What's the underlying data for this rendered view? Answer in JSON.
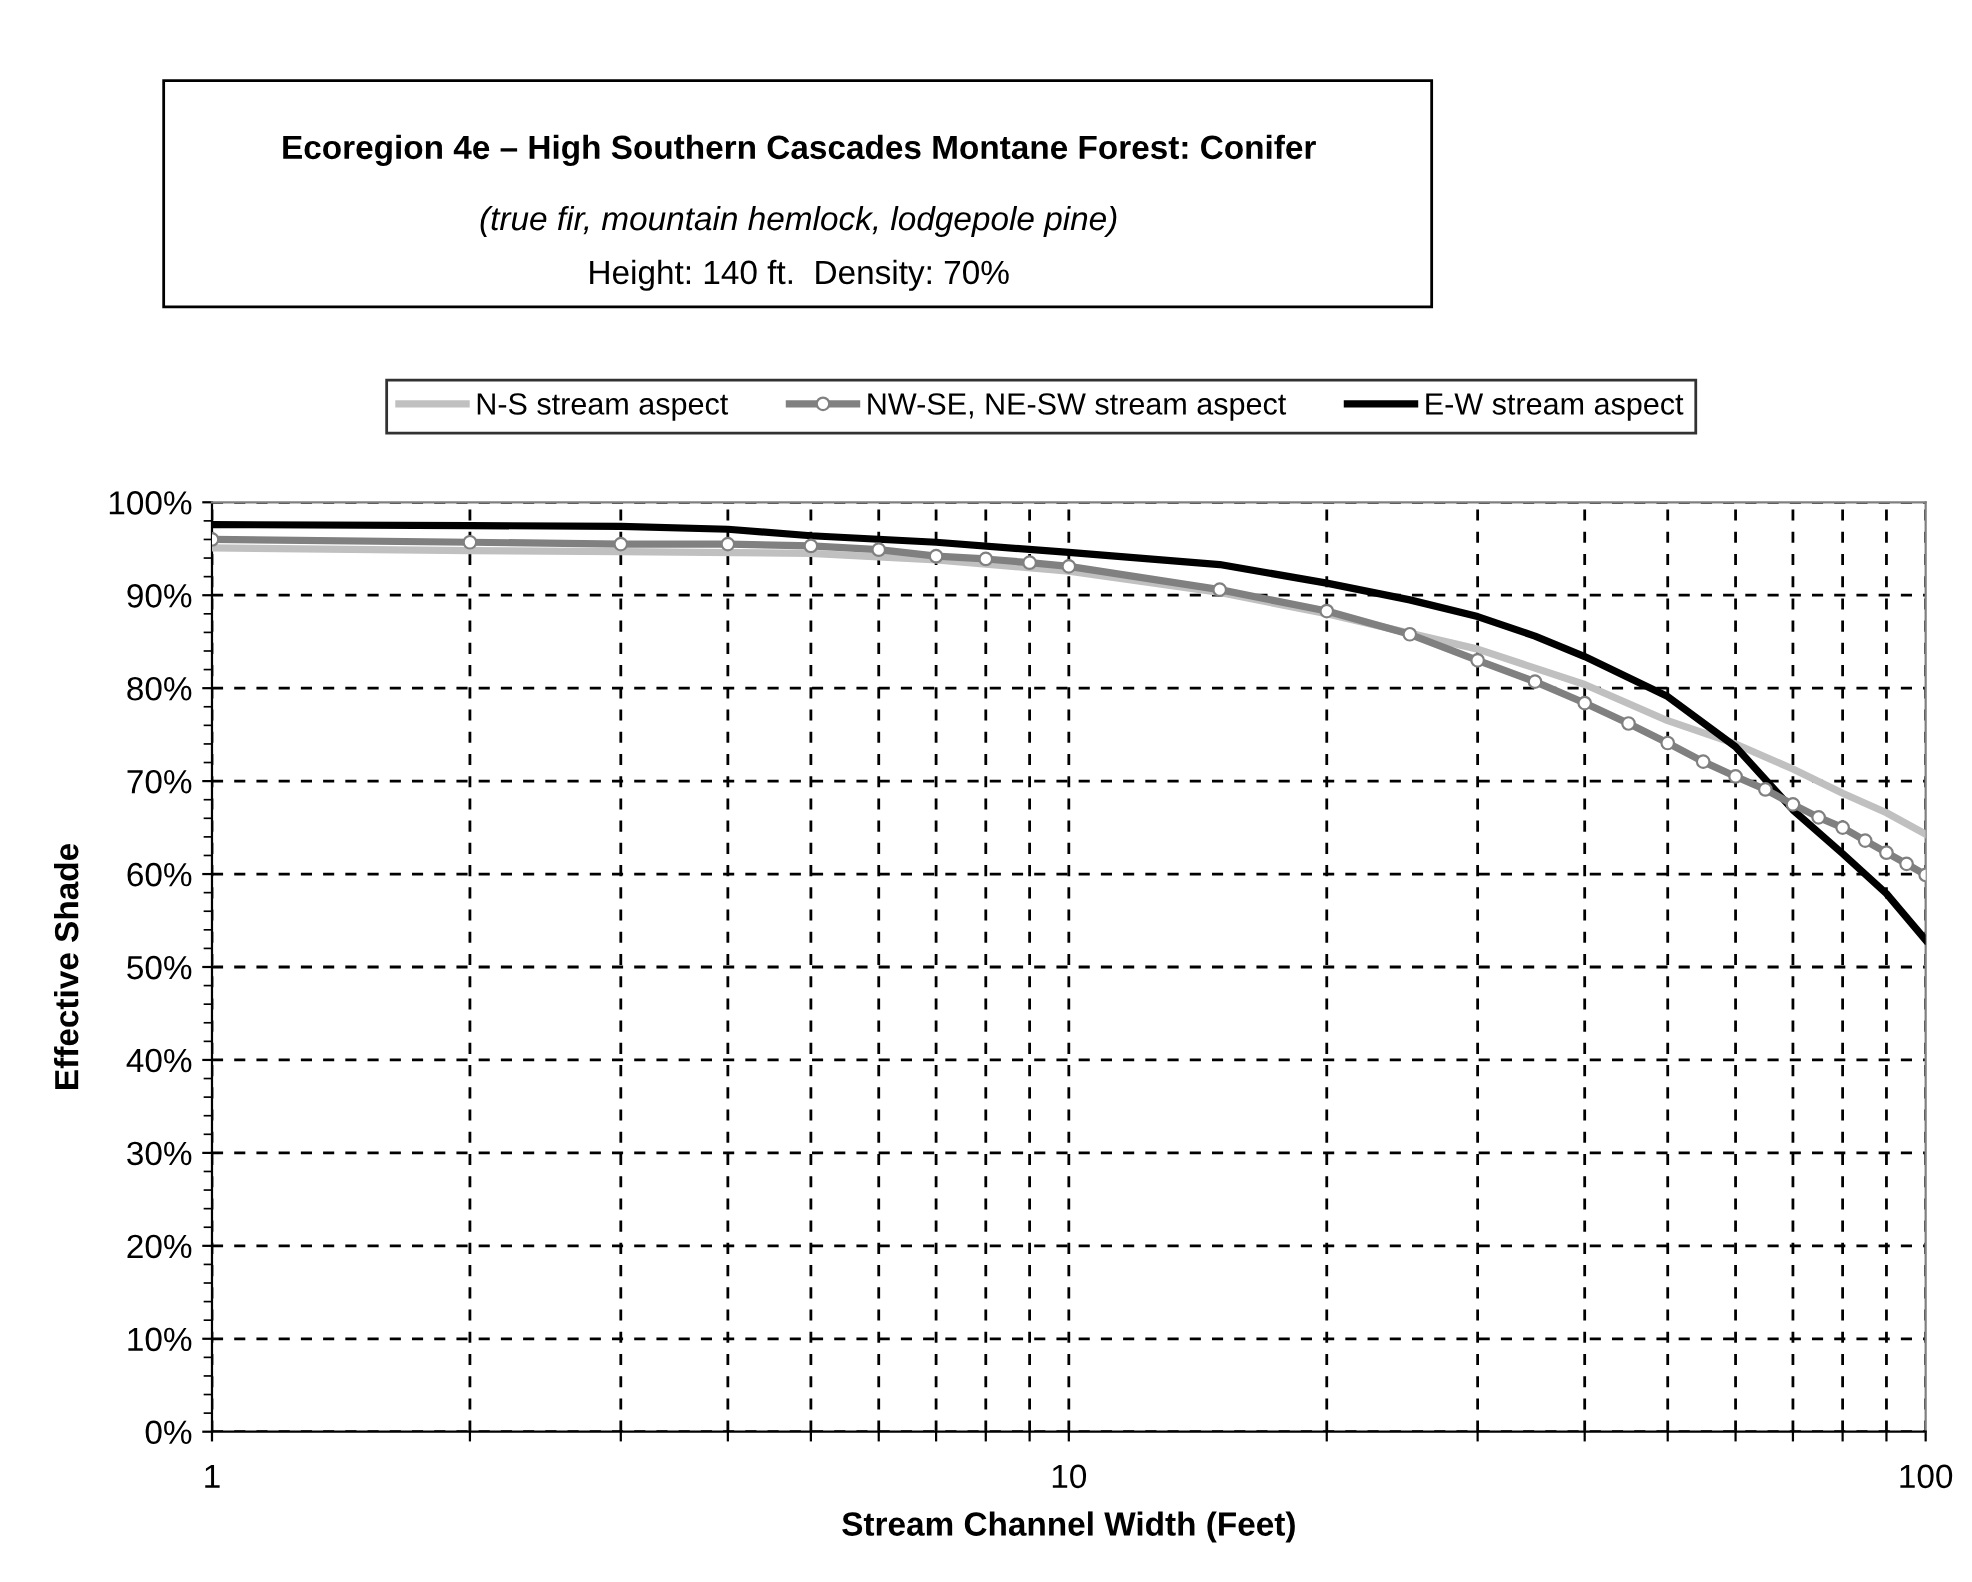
{
  "chart_data": {
    "type": "line",
    "title": "Ecoregion 4e – High Southern Cascades Montane Forest: Conifer",
    "subtitle": "(true fir, mountain hemlock, lodgepole pine)",
    "annotations": [
      "Height: 140 ft.  Density: 70%"
    ],
    "xlabel": "Stream Channel Width (Feet)",
    "ylabel": "Effective Shade",
    "log": "x",
    "grid": true,
    "legend": "top",
    "xlim": [
      1,
      100
    ],
    "xticks": [
      1,
      {
        "value": 2,
        "label": null
      },
      {
        "value": 3,
        "label": null
      },
      {
        "value": 4,
        "label": null
      },
      {
        "value": 5,
        "label": null
      },
      {
        "value": 6,
        "label": null
      },
      {
        "value": 7,
        "label": null
      },
      {
        "value": 8,
        "label": null
      },
      {
        "value": 9,
        "label": null
      },
      10,
      {
        "value": 20,
        "label": null
      },
      {
        "value": 30,
        "label": null
      },
      {
        "value": 40,
        "label": null
      },
      {
        "value": 50,
        "label": null
      },
      {
        "value": 60,
        "label": null
      },
      {
        "value": 70,
        "label": null
      },
      {
        "value": 80,
        "label": null
      },
      {
        "value": 90,
        "label": null
      },
      100
    ],
    "ylim": [
      0,
      100
    ],
    "yticks": [
      {
        "value": 0,
        "label": "0%"
      },
      {
        "value": 10,
        "label": "10%"
      },
      {
        "value": 20,
        "label": "20%"
      },
      {
        "value": 30,
        "label": "30%"
      },
      {
        "value": 40,
        "label": "40%"
      },
      {
        "value": 50,
        "label": "50%"
      },
      {
        "value": 60,
        "label": "60%"
      },
      {
        "value": 70,
        "label": "70%"
      },
      {
        "value": 80,
        "label": "80%"
      },
      {
        "value": 90,
        "label": "90%"
      },
      {
        "value": 100,
        "label": "100%"
      }
    ],
    "series": [
      {
        "name": "N-S stream aspect",
        "color": "#c0c0c0",
        "marker": "none",
        "x": [
          1,
          2,
          3,
          5,
          7,
          10,
          15,
          20,
          30,
          40,
          50,
          60,
          70,
          80,
          90,
          100
        ],
        "values": [
          95.1,
          94.8,
          94.7,
          94.5,
          93.8,
          92.6,
          90.3,
          88.0,
          84.2,
          80.4,
          76.5,
          74.0,
          71.3,
          68.7,
          66.6,
          64.3
        ]
      },
      {
        "name": "NW-SE, NE-SW stream aspect",
        "color": "#808080",
        "marker": "circle",
        "x": [
          1,
          2,
          3,
          4,
          5,
          6,
          7,
          8,
          9,
          10,
          15,
          20,
          25,
          30,
          35,
          40,
          45,
          50,
          55,
          60,
          65,
          70,
          75,
          80,
          85,
          90,
          95,
          100
        ],
        "values": [
          96.0,
          95.7,
          95.5,
          95.5,
          95.3,
          94.9,
          94.2,
          93.9,
          93.5,
          93.1,
          90.6,
          88.3,
          85.8,
          83.0,
          80.7,
          78.4,
          76.2,
          74.1,
          72.1,
          70.5,
          69.1,
          67.5,
          66.1,
          65.0,
          63.6,
          62.3,
          61.1,
          59.9
        ]
      },
      {
        "name": "E-W stream aspect",
        "color": "#000000",
        "marker": "none",
        "x": [
          1,
          2,
          3,
          4,
          5,
          7,
          10,
          15,
          20,
          25,
          30,
          35,
          40,
          50,
          60,
          70,
          80,
          90,
          100
        ],
        "values": [
          97.6,
          97.5,
          97.4,
          97.1,
          96.4,
          95.7,
          94.6,
          93.3,
          91.3,
          89.5,
          87.7,
          85.6,
          83.4,
          79.1,
          73.7,
          66.9,
          62.2,
          57.9,
          52.9
        ]
      }
    ]
  }
}
